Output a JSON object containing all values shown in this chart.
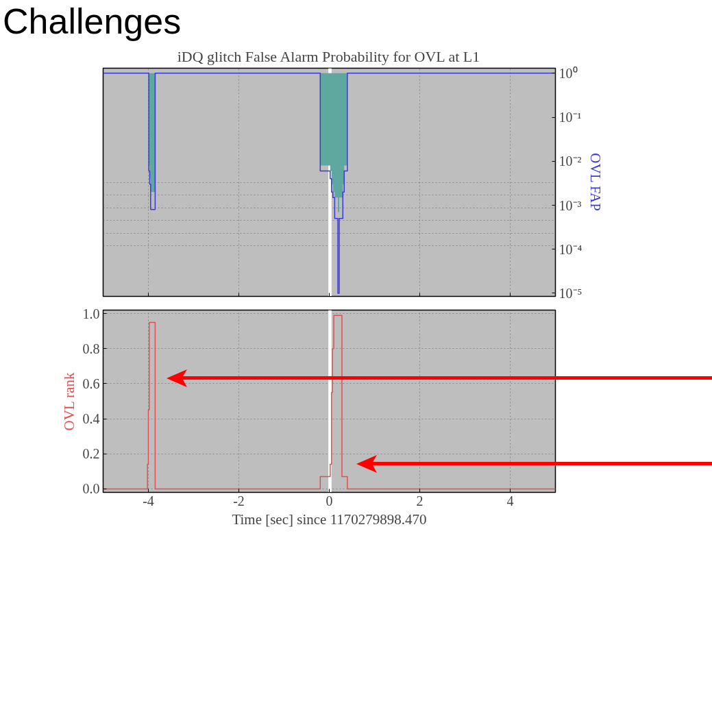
{
  "chart_data": [
    {
      "type": "line",
      "title": "iDQ glitch False Alarm Probability for OVL at L1",
      "y2label": "OVL FAP",
      "log": "y2",
      "xlim": [
        -5,
        5
      ],
      "xticks": [
        -4,
        -2,
        0,
        2,
        4
      ],
      "y2lim": [
        8.5e-06,
        1.3
      ],
      "y2ticks": [
        {
          "value": 1,
          "label": "10⁰"
        },
        {
          "value": 0.1,
          "label": "10⁻¹"
        },
        {
          "value": 0.01,
          "label": "10⁻²"
        },
        {
          "value": 0.001,
          "label": "10⁻³"
        },
        {
          "value": 0.0001,
          "label": "10⁻⁴"
        },
        {
          "value": 1e-05,
          "label": "10⁻⁵"
        }
      ],
      "tick_labels": "y",
      "grid": true,
      "annotations": [
        "Challenges"
      ],
      "bands": [
        {
          "axis": "x",
          "from": -0.02,
          "to": 0.05,
          "color": "#ffffff"
        }
      ],
      "series": [
        {
          "type": "step",
          "axis": "y2",
          "color": "#3a3ad6",
          "x": [
            -5,
            -3.99,
            -3.97,
            -3.95,
            -3.85,
            -0.2,
            0.02,
            0.05,
            0.08,
            0.12,
            0.19,
            0.22,
            0.3,
            0.33,
            0.4,
            5
          ],
          "values": [
            1,
            0.006,
            0.003,
            0.0008,
            1,
            0.006,
            0.004,
            0.002,
            0.0015,
            0.0005,
            1e-05,
            0.0005,
            0.002,
            0.006,
            1,
            1
          ],
          "lower": [
            1,
            0.008,
            0.004,
            0.002,
            1,
            0.008,
            0.006,
            0.003,
            0.002,
            0.0015,
            0.0007,
            0.0015,
            0.003,
            0.008,
            1,
            1
          ],
          "upper": [
            1,
            1,
            1,
            1,
            1,
            1,
            1,
            1,
            1,
            1,
            1,
            1,
            1,
            1,
            1,
            1
          ]
        }
      ]
    },
    {
      "type": "step",
      "xlabel": "Time [sec] since 1170279898.470",
      "ylabel": "OVL rank",
      "xlim": [
        -5,
        5
      ],
      "xticks": [
        -4,
        -2,
        0,
        2,
        4
      ],
      "ylim": [
        -0.02,
        1.02
      ],
      "yticks": [
        {
          "value": 0,
          "label": "0.0"
        },
        {
          "value": 0.2,
          "label": "0.2"
        },
        {
          "value": 0.4,
          "label": "0.4"
        },
        {
          "value": 0.6,
          "label": "0.6"
        },
        {
          "value": 0.8,
          "label": "0.8"
        },
        {
          "value": 1.0,
          "label": "1.0"
        }
      ],
      "grid": true,
      "bands": [
        {
          "axis": "x",
          "from": -0.02,
          "to": 0.05,
          "color": "#ffffff"
        }
      ],
      "series": [
        {
          "color": "#e05050",
          "x": [
            -5,
            -4.02,
            -4.0,
            -3.98,
            -3.85,
            -0.2,
            0.02,
            0.05,
            0.07,
            0.1,
            0.28,
            0.4,
            5
          ],
          "values": [
            0,
            0.14,
            0.45,
            0.95,
            0,
            0.07,
            0.14,
            0.55,
            0.8,
            0.99,
            0.07,
            0,
            0
          ]
        }
      ]
    }
  ]
}
